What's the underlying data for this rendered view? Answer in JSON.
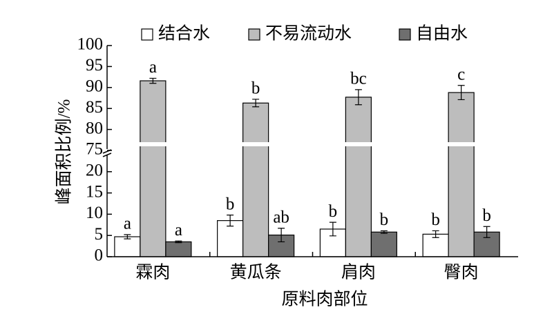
{
  "chart_data": {
    "type": "bar",
    "x_label": "原料肉部位",
    "y_label": "峰面积比例/%",
    "categories": [
      "霖肉",
      "黄瓜条",
      "肩肉",
      "臀肉"
    ],
    "series": [
      {
        "name": "结合水",
        "color": "#ffffff",
        "values": [
          4.7,
          8.5,
          6.5,
          5.3
        ],
        "errors": [
          0.5,
          1.3,
          1.6,
          0.8
        ],
        "labels": [
          "a",
          "b",
          "b",
          "b"
        ]
      },
      {
        "name": "不易流动水",
        "color": "#bdbdbd",
        "values": [
          91.6,
          86.3,
          87.7,
          88.8
        ],
        "errors": [
          0.6,
          0.9,
          1.8,
          1.7
        ],
        "labels": [
          "a",
          "b",
          "bc",
          "c"
        ]
      },
      {
        "name": "自由水",
        "color": "#6f6f6f",
        "values": [
          3.5,
          5.1,
          5.8,
          5.8
        ],
        "errors": [
          0.2,
          1.6,
          0.3,
          1.3
        ],
        "labels": [
          "a",
          "ab",
          "b",
          "b"
        ]
      }
    ],
    "ylim": [
      0,
      100
    ],
    "ybreak": [
      25,
      75
    ],
    "yticks": [
      0,
      5,
      10,
      15,
      20,
      75,
      80,
      85,
      90,
      95,
      100
    ]
  }
}
